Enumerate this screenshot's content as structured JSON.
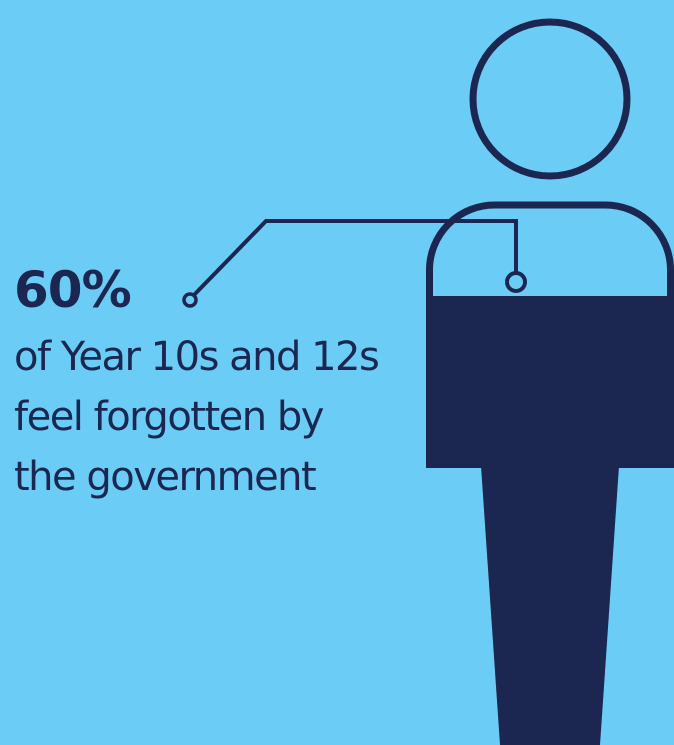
{
  "colors": {
    "background": "#6bcdf5",
    "figure": "#1b2751"
  },
  "icons": {
    "person": "person-outline-icon"
  },
  "stat": {
    "value": "60%",
    "value_fraction": 0.6,
    "caption_lines": [
      "of Year 10s and 12s",
      "feel forgotten by",
      "the government"
    ]
  }
}
